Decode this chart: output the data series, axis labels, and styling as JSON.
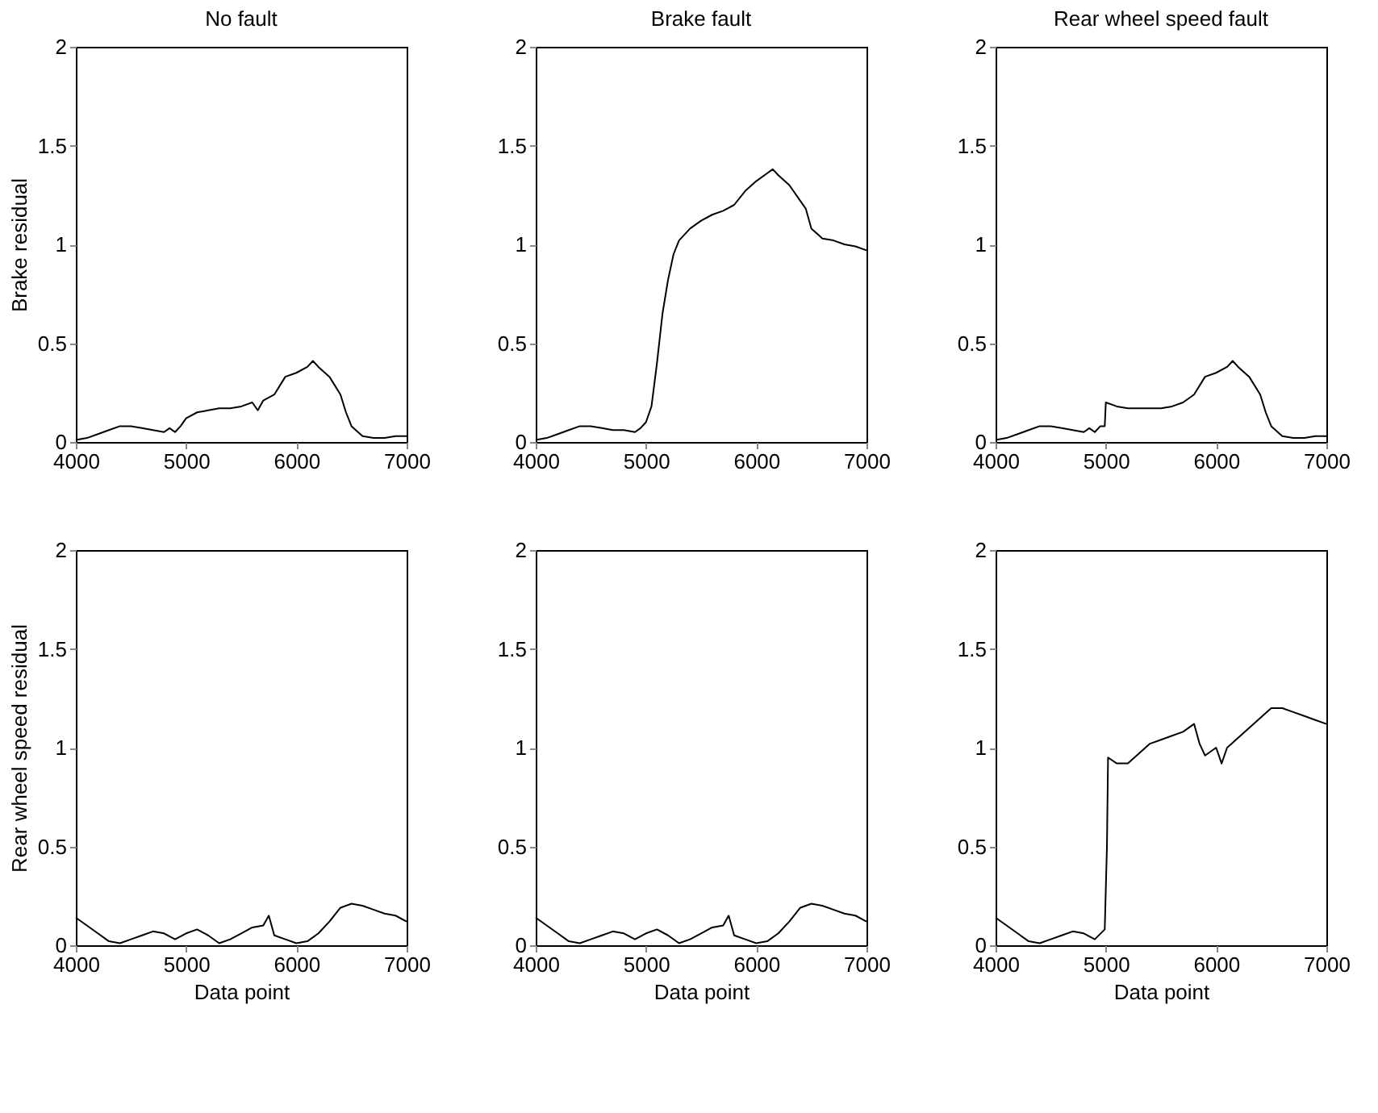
{
  "chart_data": [
    {
      "type": "line",
      "title": "No fault",
      "ylabel": "Brake residual",
      "xlim": [
        4000,
        7000
      ],
      "ylim": [
        0,
        2
      ],
      "xticks": [
        4000,
        5000,
        6000,
        7000
      ],
      "yticks": [
        0,
        0.5,
        1,
        1.5,
        2
      ],
      "grid": false,
      "series": [
        {
          "color": "#000000",
          "x": [
            4000,
            4100,
            4200,
            4300,
            4400,
            4500,
            4600,
            4700,
            4800,
            4850,
            4900,
            4950,
            5000,
            5100,
            5200,
            5300,
            5400,
            5500,
            5600,
            5650,
            5700,
            5800,
            5900,
            6000,
            6100,
            6150,
            6200,
            6300,
            6400,
            6450,
            6500,
            6600,
            6700,
            6800,
            6900,
            7000
          ],
          "values": [
            0.01,
            0.02,
            0.04,
            0.06,
            0.08,
            0.08,
            0.07,
            0.06,
            0.05,
            0.07,
            0.05,
            0.08,
            0.12,
            0.15,
            0.16,
            0.17,
            0.17,
            0.18,
            0.2,
            0.16,
            0.21,
            0.24,
            0.33,
            0.35,
            0.38,
            0.41,
            0.38,
            0.33,
            0.24,
            0.15,
            0.08,
            0.03,
            0.02,
            0.02,
            0.03,
            0.03
          ]
        }
      ]
    },
    {
      "type": "line",
      "title": "Brake fault",
      "xlim": [
        4000,
        7000
      ],
      "ylim": [
        0,
        2
      ],
      "xticks": [
        4000,
        5000,
        6000,
        7000
      ],
      "yticks": [
        0,
        0.5,
        1,
        1.5,
        2
      ],
      "grid": false,
      "series": [
        {
          "color": "#000000",
          "x": [
            4000,
            4100,
            4200,
            4300,
            4400,
            4500,
            4600,
            4700,
            4800,
            4900,
            4950,
            5000,
            5050,
            5100,
            5150,
            5200,
            5250,
            5300,
            5400,
            5500,
            5600,
            5700,
            5800,
            5900,
            6000,
            6100,
            6150,
            6200,
            6300,
            6400,
            6450,
            6500,
            6600,
            6700,
            6800,
            6900,
            7000
          ],
          "values": [
            0.01,
            0.02,
            0.04,
            0.06,
            0.08,
            0.08,
            0.07,
            0.06,
            0.06,
            0.05,
            0.07,
            0.1,
            0.18,
            0.4,
            0.65,
            0.82,
            0.95,
            1.02,
            1.08,
            1.12,
            1.15,
            1.17,
            1.2,
            1.27,
            1.32,
            1.36,
            1.38,
            1.35,
            1.3,
            1.22,
            1.18,
            1.08,
            1.03,
            1.02,
            1.0,
            0.99,
            0.97
          ]
        }
      ]
    },
    {
      "type": "line",
      "title": "Rear wheel speed fault",
      "xlim": [
        4000,
        7000
      ],
      "ylim": [
        0,
        2
      ],
      "xticks": [
        4000,
        5000,
        6000,
        7000
      ],
      "yticks": [
        0,
        0.5,
        1,
        1.5,
        2
      ],
      "grid": false,
      "series": [
        {
          "color": "#000000",
          "x": [
            4000,
            4100,
            4200,
            4300,
            4400,
            4500,
            4600,
            4700,
            4800,
            4850,
            4900,
            4950,
            4990,
            5000,
            5100,
            5200,
            5300,
            5400,
            5500,
            5600,
            5700,
            5800,
            5900,
            6000,
            6100,
            6150,
            6200,
            6300,
            6400,
            6450,
            6500,
            6600,
            6700,
            6800,
            6900,
            7000
          ],
          "values": [
            0.01,
            0.02,
            0.04,
            0.06,
            0.08,
            0.08,
            0.07,
            0.06,
            0.05,
            0.07,
            0.05,
            0.08,
            0.08,
            0.2,
            0.18,
            0.17,
            0.17,
            0.17,
            0.17,
            0.18,
            0.2,
            0.24,
            0.33,
            0.35,
            0.38,
            0.41,
            0.38,
            0.33,
            0.24,
            0.15,
            0.08,
            0.03,
            0.02,
            0.02,
            0.03,
            0.03
          ]
        }
      ]
    },
    {
      "type": "line",
      "xlabel": "Data point",
      "ylabel": "Rear wheel speed residual",
      "xlim": [
        4000,
        7000
      ],
      "ylim": [
        0,
        2
      ],
      "xticks": [
        4000,
        5000,
        6000,
        7000
      ],
      "yticks": [
        0,
        0.5,
        1,
        1.5,
        2
      ],
      "grid": false,
      "series": [
        {
          "color": "#000000",
          "x": [
            4000,
            4100,
            4200,
            4300,
            4400,
            4500,
            4600,
            4700,
            4800,
            4900,
            5000,
            5100,
            5200,
            5300,
            5400,
            5500,
            5600,
            5700,
            5750,
            5800,
            5900,
            6000,
            6100,
            6200,
            6300,
            6400,
            6500,
            6600,
            6700,
            6800,
            6900,
            7000
          ],
          "values": [
            0.14,
            0.1,
            0.06,
            0.02,
            0.01,
            0.03,
            0.05,
            0.07,
            0.06,
            0.03,
            0.06,
            0.08,
            0.05,
            0.01,
            0.03,
            0.06,
            0.09,
            0.1,
            0.15,
            0.05,
            0.03,
            0.01,
            0.02,
            0.06,
            0.12,
            0.19,
            0.21,
            0.2,
            0.18,
            0.16,
            0.15,
            0.12
          ]
        }
      ]
    },
    {
      "type": "line",
      "xlabel": "Data point",
      "xlim": [
        4000,
        7000
      ],
      "ylim": [
        0,
        2
      ],
      "xticks": [
        4000,
        5000,
        6000,
        7000
      ],
      "yticks": [
        0,
        0.5,
        1,
        1.5,
        2
      ],
      "grid": false,
      "series": [
        {
          "color": "#000000",
          "x": [
            4000,
            4100,
            4200,
            4300,
            4400,
            4500,
            4600,
            4700,
            4800,
            4900,
            5000,
            5100,
            5200,
            5300,
            5400,
            5500,
            5600,
            5700,
            5750,
            5800,
            5900,
            6000,
            6100,
            6200,
            6300,
            6400,
            6500,
            6600,
            6700,
            6800,
            6900,
            7000
          ],
          "values": [
            0.14,
            0.1,
            0.06,
            0.02,
            0.01,
            0.03,
            0.05,
            0.07,
            0.06,
            0.03,
            0.06,
            0.08,
            0.05,
            0.01,
            0.03,
            0.06,
            0.09,
            0.1,
            0.15,
            0.05,
            0.03,
            0.01,
            0.02,
            0.06,
            0.12,
            0.19,
            0.21,
            0.2,
            0.18,
            0.16,
            0.15,
            0.12
          ]
        }
      ]
    },
    {
      "type": "line",
      "xlabel": "Data point",
      "xlim": [
        4000,
        7000
      ],
      "ylim": [
        0,
        2
      ],
      "xticks": [
        4000,
        5000,
        6000,
        7000
      ],
      "yticks": [
        0,
        0.5,
        1,
        1.5,
        2
      ],
      "grid": false,
      "series": [
        {
          "color": "#000000",
          "x": [
            4000,
            4100,
            4200,
            4300,
            4400,
            4500,
            4600,
            4700,
            4800,
            4900,
            4990,
            5010,
            5020,
            5100,
            5200,
            5300,
            5400,
            5500,
            5600,
            5700,
            5800,
            5850,
            5900,
            6000,
            6050,
            6100,
            6200,
            6300,
            6400,
            6500,
            6600,
            6700,
            6800,
            6900,
            7000
          ],
          "values": [
            0.14,
            0.1,
            0.06,
            0.02,
            0.01,
            0.03,
            0.05,
            0.07,
            0.06,
            0.03,
            0.08,
            0.5,
            0.95,
            0.92,
            0.92,
            0.97,
            1.02,
            1.04,
            1.06,
            1.08,
            1.12,
            1.02,
            0.96,
            1.0,
            0.92,
            1.0,
            1.05,
            1.1,
            1.15,
            1.2,
            1.2,
            1.18,
            1.16,
            1.14,
            1.12
          ]
        }
      ]
    }
  ]
}
